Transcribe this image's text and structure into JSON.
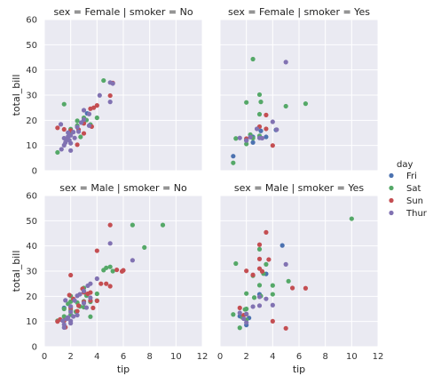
{
  "chart_data": {
    "type": "scatter",
    "xlabel": "tip",
    "ylabel": "total_bill",
    "xlim": [
      0,
      12
    ],
    "ylim": [
      0,
      60
    ],
    "xticks": [
      0,
      2,
      4,
      6,
      8,
      10,
      12
    ],
    "yticks": [
      0,
      10,
      20,
      30,
      40,
      50,
      60
    ],
    "grid": true,
    "legend": {
      "title": "day",
      "placement": "right",
      "entries": [
        {
          "name": "Fri",
          "color": "#4C72B0"
        },
        {
          "name": "Sat",
          "color": "#55A868"
        },
        {
          "name": "Sun",
          "color": "#C44E52"
        },
        {
          "name": "Thur",
          "color": "#8172B2"
        }
      ]
    },
    "facets": [
      {
        "title": "sex = Female | smoker = No",
        "series": [
          {
            "name": "Fri",
            "points": [
              [
                3.25,
                22.75
              ]
            ]
          },
          {
            "name": "Sat",
            "points": [
              [
                1.0,
                7.25
              ],
              [
                1.5,
                26.4
              ],
              [
                2.0,
                14.8
              ],
              [
                2.0,
                16.5
              ],
              [
                2.5,
                19.8
              ],
              [
                2.75,
                13.4
              ],
              [
                3.0,
                21.0
              ],
              [
                3.2,
                20.1
              ],
              [
                4.0,
                21.0
              ],
              [
                4.5,
                35.8
              ],
              [
                2.5,
                17.9
              ],
              [
                3.5,
                18.3
              ]
            ]
          },
          {
            "name": "Sun",
            "points": [
              [
                1.0,
                17.0
              ],
              [
                1.5,
                16.4
              ],
              [
                2.0,
                16.0
              ],
              [
                2.5,
                10.3
              ],
              [
                3.0,
                14.8
              ],
              [
                3.0,
                18.8
              ],
              [
                3.5,
                24.6
              ],
              [
                3.75,
                25.0
              ],
              [
                4.0,
                25.9
              ],
              [
                5.0,
                29.8
              ],
              [
                5.2,
                34.8
              ],
              [
                2.6,
                16.3
              ],
              [
                3.6,
                17.5
              ]
            ]
          },
          {
            "name": "Thur",
            "points": [
              [
                1.25,
                18.4
              ],
              [
                1.3,
                8.5
              ],
              [
                1.5,
                10.1
              ],
              [
                1.6,
                11.2
              ],
              [
                1.7,
                12.2
              ],
              [
                1.8,
                13.5
              ],
              [
                1.9,
                12.1
              ],
              [
                2.0,
                14.0
              ],
              [
                2.0,
                10.9
              ],
              [
                2.2,
                15.3
              ],
              [
                2.5,
                17.3
              ],
              [
                2.6,
                15.5
              ],
              [
                2.8,
                19.1
              ],
              [
                3.0,
                20.3
              ],
              [
                3.0,
                24.0
              ],
              [
                3.4,
                22.5
              ],
              [
                3.4,
                17.9
              ],
              [
                4.2,
                29.9
              ],
              [
                5.0,
                35.0
              ],
              [
                5.2,
                34.6
              ],
              [
                5.0,
                27.3
              ],
              [
                1.5,
                12.9
              ],
              [
                1.8,
                15.1
              ],
              [
                2.3,
                13.0
              ],
              [
                2.0,
                8.0
              ]
            ]
          }
        ]
      },
      {
        "title": "sex = Female | smoker = Yes",
        "series": [
          {
            "name": "Fri",
            "points": [
              [
                1.0,
                5.75
              ],
              [
                2.0,
                12.0
              ],
              [
                2.5,
                11.2
              ],
              [
                3.1,
                15.8
              ],
              [
                3.5,
                13.4
              ],
              [
                4.25,
                16.2
              ],
              [
                2.5,
                13.4
              ]
            ]
          },
          {
            "name": "Sat",
            "points": [
              [
                1.0,
                3.1
              ],
              [
                1.2,
                12.8
              ],
              [
                2.0,
                10.6
              ],
              [
                2.5,
                44.3
              ],
              [
                2.0,
                27.1
              ],
              [
                3.0,
                30.2
              ],
              [
                3.1,
                27.3
              ],
              [
                3.0,
                22.4
              ],
              [
                2.5,
                12.9
              ],
              [
                5.0,
                25.6
              ],
              [
                6.5,
                26.6
              ],
              [
                2.3,
                14.3
              ],
              [
                3.0,
                13.8
              ]
            ]
          },
          {
            "name": "Sun",
            "points": [
              [
                3.0,
                17.5
              ],
              [
                3.5,
                22.1
              ],
              [
                4.0,
                10.0
              ],
              [
                3.5,
                16.6
              ],
              [
                2.0,
                12.7
              ]
            ]
          },
          {
            "name": "Thur",
            "points": [
              [
                2.0,
                12.0
              ],
              [
                3.0,
                13.0
              ],
              [
                4.0,
                19.4
              ],
              [
                5.0,
                43.1
              ],
              [
                4.3,
                16.3
              ],
              [
                2.3,
                13.3
              ],
              [
                1.5,
                13.0
              ],
              [
                2.8,
                16.6
              ],
              [
                3.2,
                12.9
              ]
            ]
          }
        ]
      },
      {
        "title": "sex = Male | smoker = No",
        "series": [
          {
            "name": "Fri",
            "points": [
              [
                1.5,
                15.4
              ],
              [
                3.0,
                21.7
              ]
            ]
          },
          {
            "name": "Sat",
            "points": [
              [
                1.0,
                10.3
              ],
              [
                1.5,
                12.0
              ],
              [
                1.5,
                15.0
              ],
              [
                2.0,
                17.9
              ],
              [
                2.0,
                12.7
              ],
              [
                2.0,
                20.1
              ],
              [
                2.5,
                17.5
              ],
              [
                3.0,
                18.0
              ],
              [
                3.0,
                15.7
              ],
              [
                3.2,
                20.3
              ],
              [
                3.5,
                11.9
              ],
              [
                3.5,
                17.8
              ],
              [
                4.0,
                21.0
              ],
              [
                4.0,
                18.3
              ],
              [
                4.5,
                30.4
              ],
              [
                4.7,
                31.3
              ],
              [
                5.0,
                31.7
              ],
              [
                6.7,
                48.3
              ],
              [
                7.6,
                39.4
              ],
              [
                9.0,
                48.3
              ],
              [
                1.8,
                17.0
              ],
              [
                2.4,
                13.9
              ],
              [
                2.7,
                16.0
              ],
              [
                5.2,
                30.0
              ],
              [
                3.0,
                23.3
              ],
              [
                2.0,
                14.5
              ]
            ]
          },
          {
            "name": "Sun",
            "points": [
              [
                1.0,
                10.0
              ],
              [
                1.5,
                10.3
              ],
              [
                2.0,
                15.4
              ],
              [
                2.0,
                28.4
              ],
              [
                2.5,
                14.1
              ],
              [
                3.0,
                17.8
              ],
              [
                3.0,
                21.6
              ],
              [
                3.5,
                18.3
              ],
              [
                3.5,
                21.5
              ],
              [
                3.7,
                15.4
              ],
              [
                4.0,
                38.1
              ],
              [
                4.0,
                18.2
              ],
              [
                4.3,
                25.0
              ],
              [
                4.7,
                25.0
              ],
              [
                5.0,
                48.3
              ],
              [
                5.0,
                24.0
              ],
              [
                5.5,
                30.5
              ],
              [
                5.9,
                29.9
              ],
              [
                6.0,
                30.3
              ],
              [
                2.6,
                16.3
              ],
              [
                1.9,
                20.5
              ],
              [
                2.9,
                23.0
              ],
              [
                3.3,
                21.0
              ],
              [
                1.6,
                7.7
              ],
              [
                2.2,
                19.0
              ],
              [
                1.2,
                10.8
              ]
            ]
          },
          {
            "name": "Thur",
            "points": [
              [
                1.5,
                7.6
              ],
              [
                1.5,
                8.8
              ],
              [
                1.7,
                11.0
              ],
              [
                2.0,
                9.3
              ],
              [
                2.0,
                10.2
              ],
              [
                2.0,
                13.8
              ],
              [
                2.0,
                16.0
              ],
              [
                2.3,
                18.3
              ],
              [
                2.5,
                20.2
              ],
              [
                3.0,
                22.1
              ],
              [
                3.0,
                17.3
              ],
              [
                3.2,
                15.5
              ],
              [
                3.5,
                19.4
              ],
              [
                3.5,
                25.0
              ],
              [
                4.0,
                27.0
              ],
              [
                5.0,
                41.0
              ],
              [
                6.7,
                34.3
              ],
              [
                2.5,
                12.5
              ],
              [
                1.8,
                11.6
              ],
              [
                1.4,
                10.3
              ],
              [
                2.2,
                12.0
              ],
              [
                3.3,
                24.2
              ],
              [
                1.6,
                18.4
              ],
              [
                2.7,
                20.8
              ]
            ]
          }
        ]
      },
      {
        "title": "sex = Male | smoker = Yes",
        "series": [
          {
            "name": "Fri",
            "points": [
              [
                1.5,
                12.1
              ],
              [
                2.0,
                8.6
              ],
              [
                3.0,
                20.8
              ],
              [
                4.73,
                40.2
              ],
              [
                3.5,
                28.9
              ],
              [
                2.2,
                11.4
              ]
            ]
          },
          {
            "name": "Sat",
            "points": [
              [
                1.0,
                12.8
              ],
              [
                1.2,
                33.0
              ],
              [
                1.5,
                7.5
              ],
              [
                1.7,
                11.6
              ],
              [
                2.0,
                15.0
              ],
              [
                2.0,
                21.1
              ],
              [
                2.5,
                28.2
              ],
              [
                3.0,
                38.7
              ],
              [
                3.0,
                24.4
              ],
              [
                3.1,
                20.1
              ],
              [
                3.5,
                32.7
              ],
              [
                3.3,
                29.0
              ],
              [
                4.0,
                24.3
              ],
              [
                4.0,
                20.8
              ],
              [
                5.2,
                26.0
              ],
              [
                10.0,
                50.8
              ],
              [
                2.0,
                10.7
              ],
              [
                2.6,
                19.5
              ],
              [
                1.9,
                14.8
              ]
            ]
          },
          {
            "name": "Sun",
            "points": [
              [
                1.5,
                15.4
              ],
              [
                2.0,
                30.1
              ],
              [
                2.0,
                12.9
              ],
              [
                3.0,
                40.5
              ],
              [
                3.0,
                34.8
              ],
              [
                3.2,
                29.9
              ],
              [
                3.5,
                45.4
              ],
              [
                3.7,
                34.6
              ],
              [
                4.0,
                10.1
              ],
              [
                5.0,
                7.3
              ],
              [
                5.5,
                23.3
              ],
              [
                6.5,
                23.2
              ],
              [
                3.0,
                31.0
              ],
              [
                2.5,
                28.5
              ],
              [
                1.8,
                12.5
              ]
            ]
          },
          {
            "name": "Thur",
            "points": [
              [
                1.5,
                13.4
              ],
              [
                2.0,
                13.0
              ],
              [
                3.0,
                19.8
              ],
              [
                3.5,
                19.0
              ],
              [
                4.0,
                16.5
              ],
              [
                5.0,
                32.7
              ],
              [
                2.5,
                15.9
              ],
              [
                3.0,
                16.3
              ],
              [
                2.0,
                9.6
              ],
              [
                1.8,
                11.1
              ]
            ]
          }
        ]
      }
    ]
  }
}
